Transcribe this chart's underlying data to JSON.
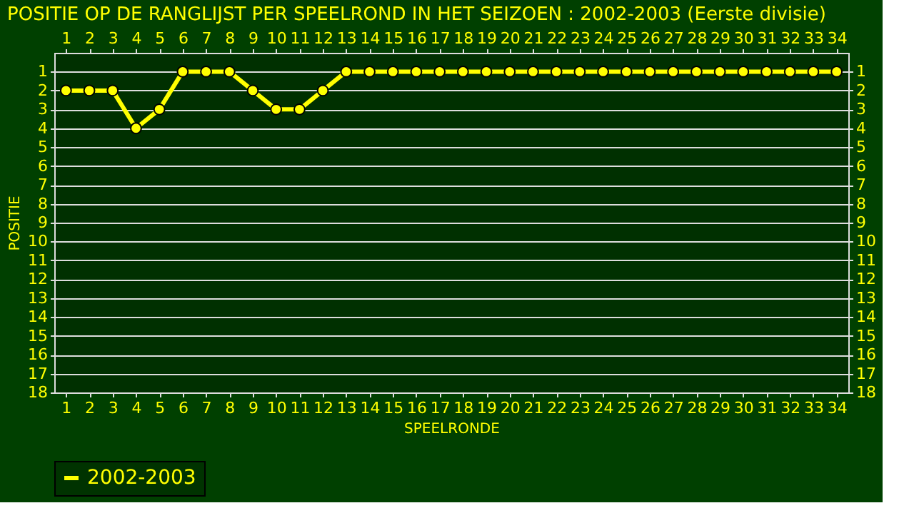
{
  "chart_data": {
    "type": "line",
    "title": "POSITIE OP DE RANGLIJST PER  SPEELROND IN HET SEIZOEN : 2002-2003 (Eerste divisie)",
    "xlabel": "SPEELRONDE",
    "ylabel": "POSITIE",
    "x": [
      1,
      2,
      3,
      4,
      5,
      6,
      7,
      8,
      9,
      10,
      11,
      12,
      13,
      14,
      15,
      16,
      17,
      18,
      19,
      20,
      21,
      22,
      23,
      24,
      25,
      26,
      27,
      28,
      29,
      30,
      31,
      32,
      33,
      34
    ],
    "xlim": [
      0.5,
      34.5
    ],
    "xticks": [
      1,
      2,
      3,
      4,
      5,
      6,
      7,
      8,
      9,
      10,
      11,
      12,
      13,
      14,
      15,
      16,
      17,
      18,
      19,
      20,
      21,
      22,
      23,
      24,
      25,
      26,
      27,
      28,
      29,
      30,
      31,
      32,
      33,
      34
    ],
    "x2lim": [
      0.5,
      34.5
    ],
    "x2ticks": [
      1,
      2,
      3,
      4,
      5,
      6,
      7,
      8,
      9,
      10,
      11,
      12,
      13,
      14,
      15,
      16,
      17,
      18,
      19,
      20,
      21,
      22,
      23,
      24,
      25,
      26,
      27,
      28,
      29,
      30,
      31,
      32,
      33,
      34
    ],
    "ylim": [
      18,
      0
    ],
    "yticks": [
      1,
      2,
      3,
      4,
      5,
      6,
      7,
      8,
      9,
      10,
      11,
      12,
      13,
      14,
      15,
      16,
      17,
      18
    ],
    "y2lim": [
      18,
      0
    ],
    "y2ticks": [
      1,
      2,
      3,
      4,
      5,
      6,
      7,
      8,
      9,
      10,
      11,
      12,
      13,
      14,
      15,
      16,
      17,
      18
    ],
    "series": [
      {
        "name": "2002-2003",
        "color": "#ffff00",
        "values": [
          2,
          2,
          2,
          4,
          3,
          1,
          1,
          1,
          2,
          3,
          3,
          2,
          1,
          1,
          1,
          1,
          1,
          1,
          1,
          1,
          1,
          1,
          1,
          1,
          1,
          1,
          1,
          1,
          1,
          1,
          1,
          1,
          1,
          1
        ]
      }
    ],
    "grid": "y",
    "legend": "bottom",
    "marker": "circle",
    "line_style": "solid"
  }
}
